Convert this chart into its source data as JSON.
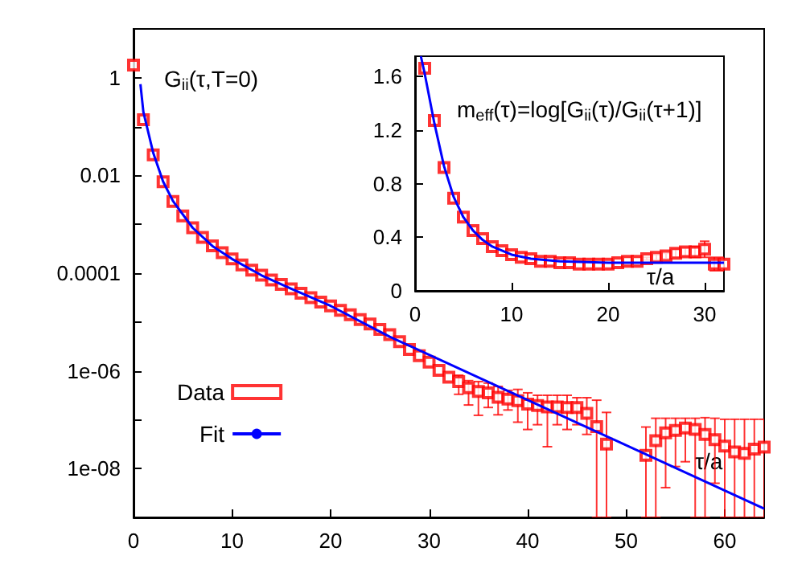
{
  "chart_data": [
    {
      "type": "scatter",
      "xlabel": "τ/a",
      "annotations": [
        "G$_{ii}$(τ,T=0)"
      ],
      "log": "y",
      "legend": "bottom left",
      "xlim": [
        0,
        64
      ],
      "xticks": [
        0,
        10,
        20,
        30,
        40,
        50,
        60
      ],
      "ylim": [
        1e-09,
        10
      ],
      "yticks": [
        {
          "value": 1e-08,
          "label": "1e-08"
        },
        {
          "value": 1e-07,
          "label": null
        },
        {
          "value": 1e-06,
          "label": "1e-06"
        },
        {
          "value": 1e-05,
          "label": null
        },
        0.0001,
        {
          "value": 0.001,
          "label": null
        },
        0.01,
        {
          "value": 0.1,
          "label": null
        },
        1
      ],
      "series": [
        {
          "name": "Data",
          "color": "#ff0000",
          "marker": "square",
          "x": [
            0,
            1,
            2,
            3,
            4,
            5,
            6,
            7,
            8,
            9,
            10,
            11,
            12,
            13,
            14,
            15,
            16,
            17,
            18,
            19,
            20,
            21,
            22,
            23,
            24,
            25,
            26,
            27,
            28,
            29,
            30,
            31,
            32,
            33,
            34,
            35,
            36,
            37,
            38,
            39,
            40,
            41,
            42,
            43,
            44,
            45,
            46,
            47,
            48,
            49,
            50,
            51,
            52,
            53,
            54,
            55,
            56,
            57,
            58,
            59,
            60,
            61,
            62,
            63,
            64
          ],
          "values": [
            1.82,
            0.138,
            0.0263,
            0.00741,
            0.00295,
            0.00148,
            0.000851,
            0.000537,
            0.000363,
            0.000263,
            0.000195,
            0.000148,
            0.000115,
            9.12e-05,
            7.24e-05,
            5.89e-05,
            4.79e-05,
            3.89e-05,
            3.16e-05,
            2.57e-05,
            2.14e-05,
            1.74e-05,
            1.41e-05,
            1.12e-05,
            9.12e-06,
            7.08e-06,
            5.5e-06,
            3.98e-06,
            2.75e-06,
            2.04e-06,
            1.51e-06,
            1.02e-06,
            7.41e-07,
            6.03e-07,
            4.47e-07,
            3.8e-07,
            3.55e-07,
            2.88e-07,
            2.63e-07,
            2.45e-07,
            2.09e-07,
            1.95e-07,
            1.82e-07,
            1.82e-07,
            1.78e-07,
            1.78e-07,
            1.35e-07,
            7.24e-08,
            3.16e-08,
            null,
            null,
            null,
            1.86e-08,
            3.72e-08,
            5.37e-08,
            6.03e-08,
            6.76e-08,
            6.31e-08,
            5.01e-08,
            3.89e-08,
            2.88e-08,
            2.19e-08,
            2.04e-08,
            2.51e-08,
            2.75e-08
          ],
          "errors": [
            null,
            null,
            null,
            null,
            null,
            null,
            null,
            null,
            null,
            null,
            null,
            null,
            null,
            null,
            null,
            null,
            null,
            null,
            null,
            null,
            null,
            null,
            null,
            null,
            null,
            null,
            null,
            null,
            null,
            null,
            null,
            null,
            null,
            [
              3.31e-07,
              8.13e-07
            ],
            [
              2e-07,
              6.3e-07
            ],
            [
              1.23e-07,
              6.03e-07
            ],
            [
              1.78e-07,
              5.62e-07
            ],
            [
              1.26e-07,
              4.79e-07
            ],
            [
              1.58e-07,
              3.98e-07
            ],
            [
              8.9e-08,
              4.17e-07
            ],
            [
              6.3e-08,
              3.55e-07
            ],
            [
              7.9e-08,
              3.16e-07
            ],
            [
              2.8e-08,
              3.16e-07
            ],
            [
              7.9e-08,
              3.16e-07
            ],
            [
              6.3e-08,
              3.16e-07
            ],
            [
              7.9e-08,
              2.82e-07
            ],
            [
              5e-08,
              2.82e-07
            ],
            [
              1e-09,
              2.51e-07
            ],
            [
              1e-09,
              1.41e-07
            ],
            null,
            null,
            null,
            [
              1e-09,
              7.08e-08
            ],
            [
              1e-09,
              1.07e-07
            ],
            [
              4.07e-09,
              1.07e-07
            ],
            [
              1.1e-08,
              1.07e-07
            ],
            [
              1.38e-08,
              1.07e-07
            ],
            [
              1e-09,
              1.07e-07
            ],
            [
              1e-09,
              1.1e-07
            ],
            [
              5e-09,
              1.07e-07
            ],
            [
              1e-09,
              1.02e-07
            ],
            [
              1e-09,
              1.02e-07
            ],
            [
              1e-09,
              1.02e-07
            ],
            [
              1e-09,
              1.02e-07
            ],
            [
              1e-09,
              1.02e-07
            ]
          ]
        },
        {
          "name": "Fit",
          "type": "line",
          "color": "#0000ff",
          "marker": "none",
          "x": [
            0.7,
            1,
            2,
            3,
            4,
            6,
            8,
            10,
            13,
            16,
            20,
            26,
            64
          ],
          "values": [
            0.74,
            0.2,
            0.029,
            0.0075,
            0.003,
            0.00085,
            0.00036,
            0.000195,
            9e-05,
            4.8e-05,
            2.14e-05,
            5e-06,
            1.51e-09
          ]
        }
      ]
    },
    {
      "type": "scatter",
      "xlabel": "τ/a",
      "annotations": [
        "m$_{eff}$(τ)=log[G$_{ii}$(τ)/G$_{ii}$(τ+1)]"
      ],
      "xlim": [
        0,
        32
      ],
      "xticks": [
        0,
        10,
        20,
        30
      ],
      "ylim": [
        0,
        1.75
      ],
      "yticks": [
        0,
        0.4,
        0.8,
        1.2,
        1.6
      ],
      "series": [
        {
          "color": "#ff0000",
          "marker": "square",
          "x": [
            1,
            2,
            3,
            4,
            5,
            6,
            7,
            8,
            9,
            10,
            11,
            12,
            13,
            14,
            15,
            16,
            17,
            18,
            19,
            20,
            21,
            22,
            23,
            24,
            25,
            26,
            27,
            28,
            29,
            30,
            31,
            32
          ],
          "values": [
            1.66,
            1.27,
            0.92,
            0.69,
            0.55,
            0.45,
            0.39,
            0.33,
            0.3,
            0.27,
            0.25,
            0.24,
            0.22,
            0.22,
            0.21,
            0.21,
            0.2,
            0.2,
            0.2,
            0.2,
            0.21,
            0.22,
            0.22,
            0.24,
            0.25,
            0.26,
            0.28,
            0.29,
            0.29,
            0.31,
            0.2,
            0.2
          ],
          "errors": [
            null,
            null,
            null,
            null,
            null,
            null,
            null,
            null,
            null,
            null,
            null,
            null,
            null,
            null,
            null,
            null,
            null,
            null,
            null,
            null,
            null,
            null,
            null,
            0.01,
            0.02,
            0.02,
            0.03,
            0.03,
            0.04,
            0.06,
            0.05,
            0.05
          ]
        },
        {
          "type": "line",
          "color": "#0000ff",
          "marker": "none",
          "x": [
            0.6,
            1,
            2,
            3,
            4,
            5,
            6,
            7,
            8,
            10,
            12,
            15,
            20,
            25,
            32
          ],
          "values": [
            1.75,
            1.62,
            1.25,
            0.93,
            0.7,
            0.55,
            0.45,
            0.38,
            0.33,
            0.27,
            0.24,
            0.22,
            0.21,
            0.21,
            0.21
          ]
        }
      ]
    }
  ]
}
